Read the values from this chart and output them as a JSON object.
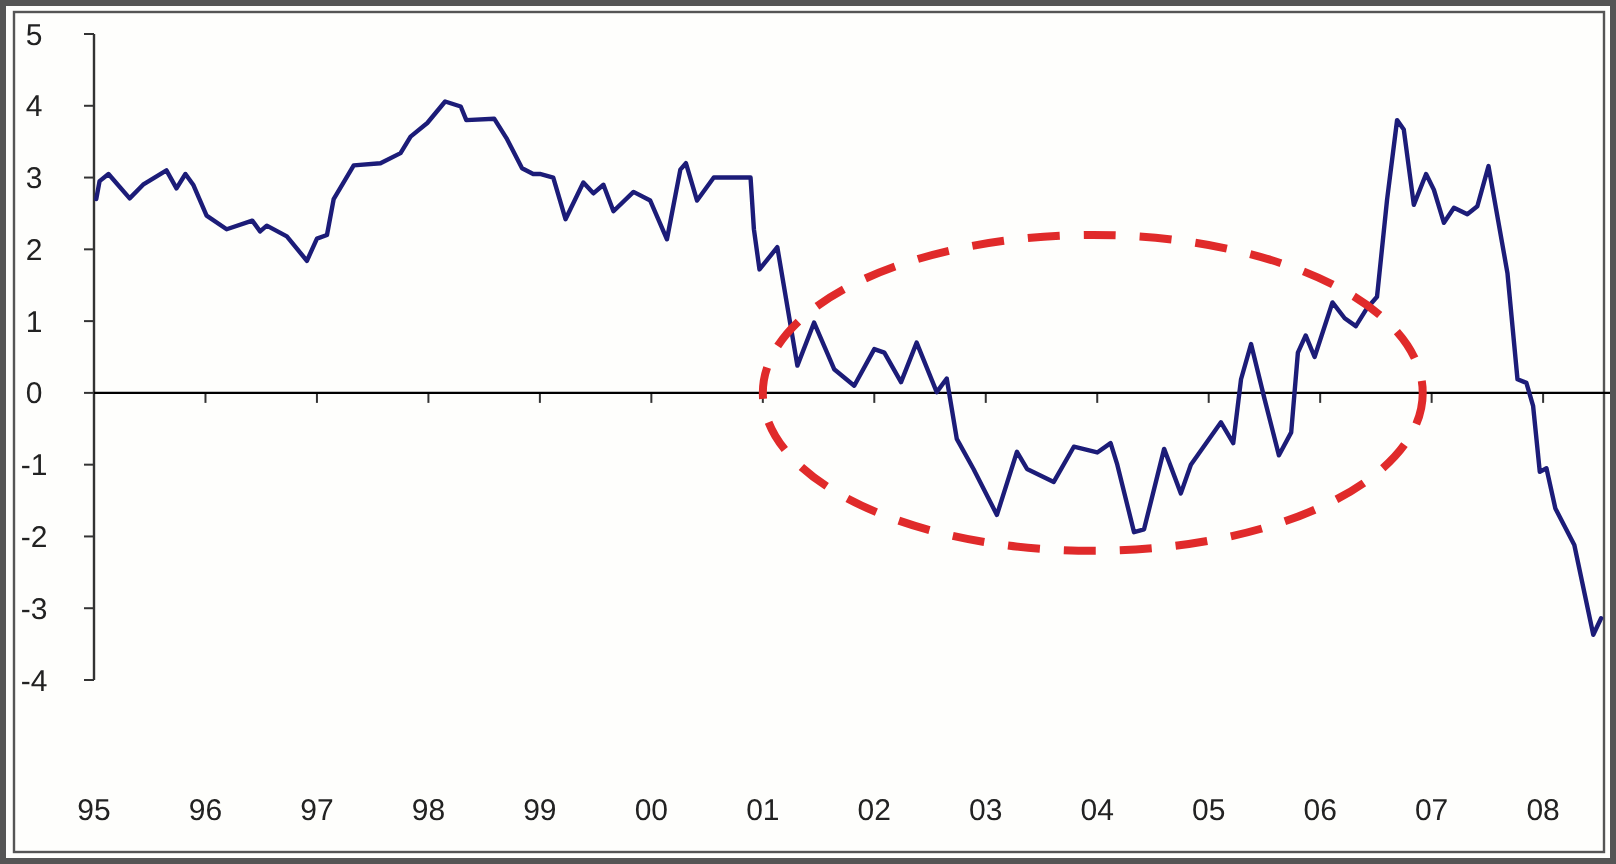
{
  "chart_data": {
    "type": "line",
    "x": [
      1995.02,
      1995.05,
      1995.13,
      1995.32,
      1995.44,
      1995.65,
      1995.74,
      1995.82,
      1995.89,
      1996.01,
      1996.19,
      1996.42,
      1996.49,
      1996.55,
      1996.73,
      1996.91,
      1997.0,
      1997.09,
      1997.15,
      1997.33,
      1997.57,
      1997.75,
      1997.84,
      1997.99,
      1998.15,
      1998.29,
      1998.34,
      1998.59,
      1998.7,
      1998.84,
      1998.94,
      1999.0,
      1999.12,
      1999.23,
      1999.39,
      1999.48,
      1999.57,
      1999.66,
      1999.84,
      1999.99,
      2000.14,
      2000.26,
      2000.31,
      2000.41,
      2000.56,
      2000.89,
      2000.92,
      2000.97,
      2001.13,
      2001.31,
      2001.46,
      2001.64,
      2001.82,
      2002.0,
      2002.09,
      2002.24,
      2002.38,
      2002.56,
      2002.65,
      2002.74,
      2002.89,
      2003.1,
      2003.28,
      2003.37,
      2003.61,
      2003.79,
      2004.0,
      2004.12,
      2004.18,
      2004.33,
      2004.42,
      2004.6,
      2004.75,
      2004.84,
      2005.11,
      2005.22,
      2005.29,
      2005.38,
      2005.5,
      2005.63,
      2005.74,
      2005.8,
      2005.87,
      2005.95,
      2006.11,
      2006.22,
      2006.32,
      2006.42,
      2006.51,
      2006.6,
      2006.69,
      2006.75,
      2006.84,
      2006.95,
      2007.02,
      2007.11,
      2007.2,
      2007.32,
      2007.41,
      2007.51,
      2007.56,
      2007.68,
      2007.77,
      2007.85,
      2007.91,
      2007.97,
      2008.03,
      2008.11,
      2008.28,
      2008.45,
      2008.52
    ],
    "series": [
      {
        "color": "#1c1c78",
        "values": [
          2.7,
          2.95,
          3.05,
          2.71,
          2.9,
          3.1,
          2.85,
          3.05,
          2.9,
          2.47,
          2.28,
          2.4,
          2.25,
          2.33,
          2.18,
          1.84,
          2.15,
          2.2,
          2.7,
          3.17,
          3.2,
          3.34,
          3.57,
          3.76,
          4.06,
          3.99,
          3.8,
          3.82,
          3.55,
          3.13,
          3.05,
          3.05,
          3.0,
          2.42,
          2.93,
          2.78,
          2.9,
          2.53,
          2.8,
          2.68,
          2.14,
          3.11,
          3.2,
          2.68,
          3.0,
          3.0,
          2.28,
          1.72,
          2.03,
          0.38,
          0.98,
          0.33,
          0.1,
          0.61,
          0.56,
          0.15,
          0.7,
          0.01,
          0.2,
          -0.64,
          -1.06,
          -1.7,
          -0.82,
          -1.06,
          -1.24,
          -0.75,
          -0.83,
          -0.7,
          -1.0,
          -1.94,
          -1.9,
          -0.78,
          -1.4,
          -1.0,
          -0.41,
          -0.7,
          0.19,
          0.68,
          -0.08,
          -0.87,
          -0.55,
          0.56,
          0.8,
          0.5,
          1.26,
          1.04,
          0.93,
          1.18,
          1.34,
          2.69,
          3.8,
          3.67,
          2.62,
          3.05,
          2.83,
          2.37,
          2.58,
          2.49,
          2.6,
          3.16,
          2.72,
          1.67,
          0.19,
          0.14,
          -0.18,
          -1.1,
          -1.05,
          -1.61,
          -2.12,
          -3.37,
          -3.14
        ]
      }
    ],
    "xlim": [
      1995,
      2008.6
    ],
    "xticks": [
      {
        "value": 1995,
        "label": "95"
      },
      {
        "value": 1996,
        "label": "96"
      },
      {
        "value": 1997,
        "label": "97"
      },
      {
        "value": 1998,
        "label": "98"
      },
      {
        "value": 1999,
        "label": "99"
      },
      {
        "value": 2000,
        "label": "00"
      },
      {
        "value": 2001,
        "label": "01"
      },
      {
        "value": 2002,
        "label": "02"
      },
      {
        "value": 2003,
        "label": "03"
      },
      {
        "value": 2004,
        "label": "04"
      },
      {
        "value": 2005,
        "label": "05"
      },
      {
        "value": 2006,
        "label": "06"
      },
      {
        "value": 2007,
        "label": "07"
      },
      {
        "value": 2008,
        "label": "08"
      }
    ],
    "ylim": [
      -4,
      5
    ],
    "yticks": [
      -4,
      -3,
      -2,
      -1,
      0,
      1,
      2,
      3,
      4,
      5
    ],
    "ref_lines": [
      {
        "axis": "y",
        "value": 0,
        "color": "#000000"
      }
    ],
    "line_style": "solid"
  }
}
